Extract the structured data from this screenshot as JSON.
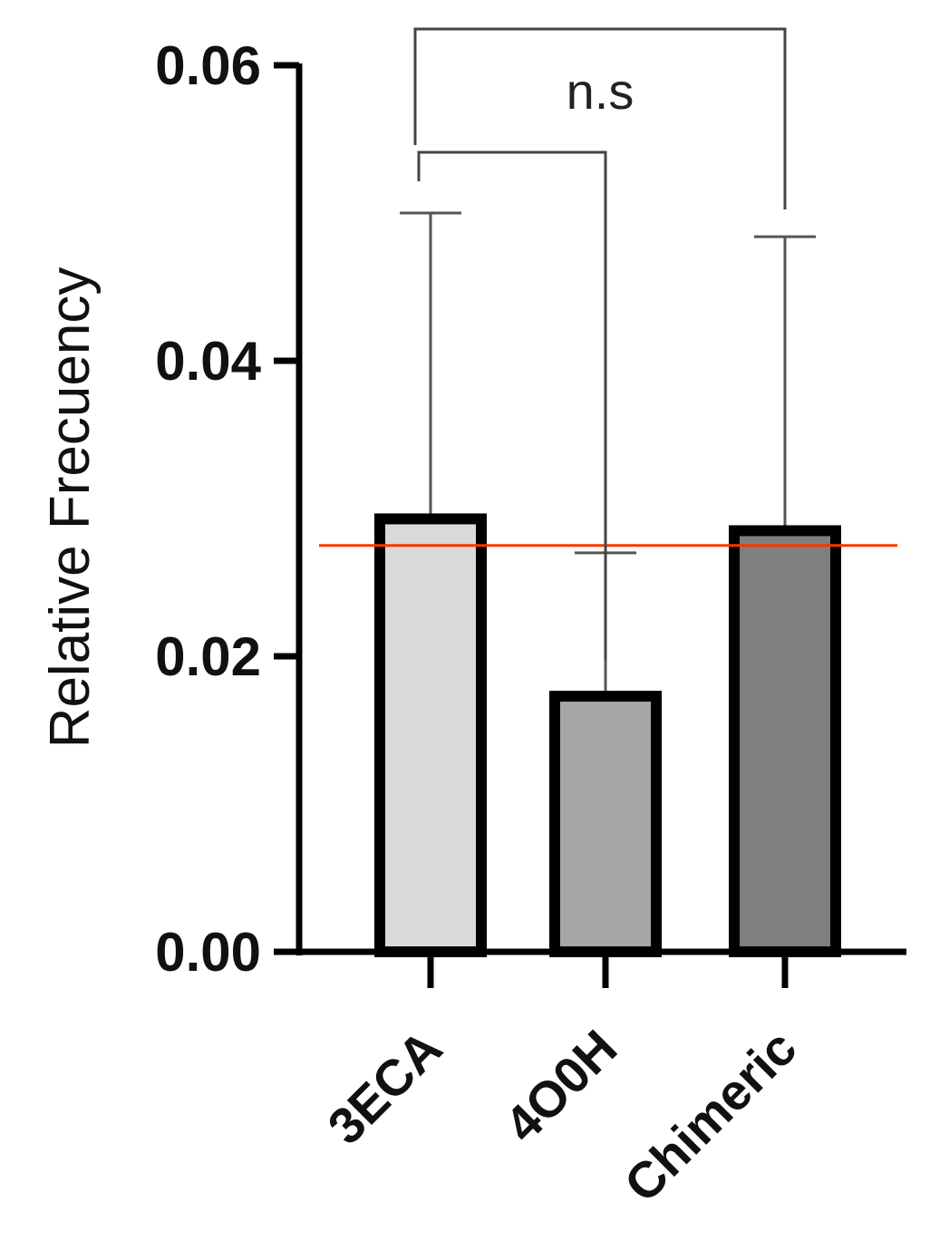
{
  "chart_data": {
    "type": "bar",
    "ylabel": "Relative Frecuency",
    "xlabel": "",
    "ylim": [
      0,
      0.06
    ],
    "yticks": [
      0.0,
      0.02,
      0.04,
      0.06
    ],
    "ytick_labels": [
      "0.00",
      "0.02",
      "0.04",
      "0.06"
    ],
    "categories": [
      "3ECA",
      "4O0H",
      "Chimeric"
    ],
    "values": [
      0.0293,
      0.0173,
      0.0285
    ],
    "error_upper": [
      0.05,
      0.027,
      0.0484
    ],
    "bar_colors": [
      "#d9d9d9",
      "#a6a6a9",
      "#7f7f7f"
    ],
    "reference_line": {
      "value": 0.0275,
      "color": "#ff3300"
    },
    "significance": [
      {
        "from": "3ECA",
        "to": "4O0H",
        "label": ""
      },
      {
        "from": "3ECA",
        "to": "Chimeric",
        "label": "n.s"
      }
    ],
    "grid": false,
    "legend": "none"
  }
}
